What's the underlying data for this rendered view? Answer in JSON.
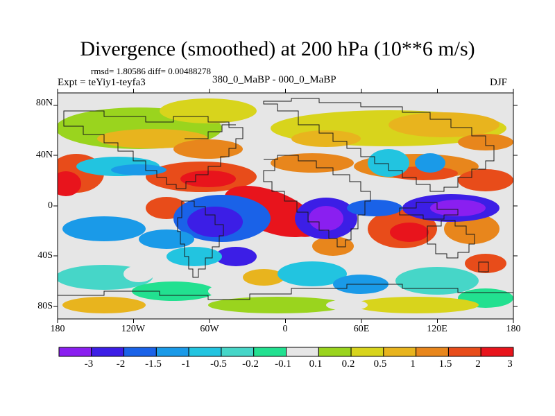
{
  "title": "Divergence (smoothed) at 200 hPa (10**6 m/s)",
  "stats": "rmsd= 1.80586 diff= 0.00488278",
  "experiment": "Expt = teYiy1-teyfa3",
  "period": "380_0_MaBP - 000_0_MaBP",
  "season": "DJF",
  "lat_labels": [
    "80N",
    "40N",
    "0",
    "40S",
    "80S"
  ],
  "lon_labels": [
    "180",
    "120W",
    "60W",
    "0",
    "60E",
    "120E",
    "180"
  ],
  "colorbar": {
    "labels": [
      "-3",
      "-2",
      "-1.5",
      "-1",
      "-0.5",
      "-0.2",
      "-0.1",
      "0.1",
      "0.2",
      "0.5",
      "1",
      "1.5",
      "2",
      "3"
    ],
    "colors": [
      "#8a1ff0",
      "#3c1ee6",
      "#1a62e8",
      "#1a9ae8",
      "#22c4e0",
      "#46d6c8",
      "#22e090",
      "#e6e6e6",
      "#9ad41e",
      "#d8d41c",
      "#e8b41e",
      "#e8861c",
      "#e84c1a",
      "#e8141c"
    ]
  },
  "colors": {
    "frame": "#000000",
    "coast": "#1a1a1a",
    "background": "#e6e6e6"
  }
}
